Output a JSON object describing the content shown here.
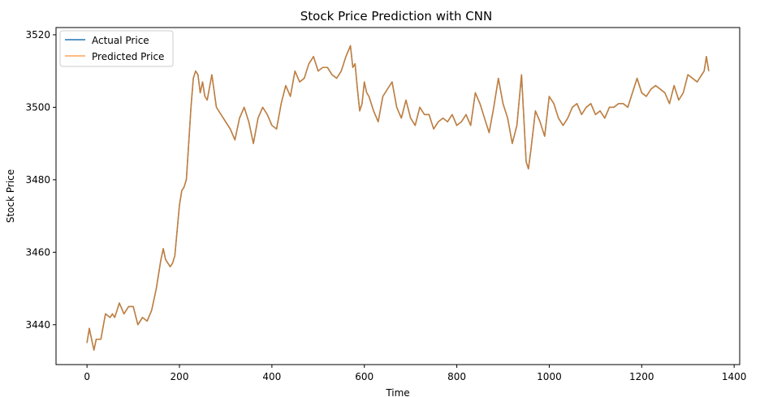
{
  "chart_data": {
    "type": "line",
    "title": "Stock Price Prediction with CNN",
    "xlabel": "Time",
    "ylabel": "Stock Price",
    "xlim": [
      -67,
      1412
    ],
    "ylim": [
      3429,
      3522
    ],
    "xticks": [
      0,
      200,
      400,
      600,
      800,
      1000,
      1200,
      1400
    ],
    "yticks": [
      3440,
      3460,
      3480,
      3500,
      3520
    ],
    "grid": false,
    "legend": "top-left",
    "series": [
      {
        "name": "Actual Price",
        "color": "#1f77b4",
        "x": [
          0,
          5,
          10,
          15,
          20,
          30,
          40,
          50,
          55,
          60,
          70,
          80,
          90,
          100,
          110,
          120,
          130,
          140,
          150,
          160,
          165,
          170,
          180,
          185,
          190,
          200,
          205,
          210,
          215,
          220,
          225,
          230,
          235,
          240,
          245,
          250,
          255,
          260,
          270,
          280,
          290,
          300,
          310,
          320,
          330,
          340,
          350,
          360,
          370,
          380,
          390,
          400,
          410,
          420,
          430,
          440,
          450,
          460,
          470,
          480,
          490,
          500,
          510,
          520,
          530,
          540,
          550,
          560,
          570,
          575,
          580,
          585,
          590,
          595,
          600,
          605,
          610,
          620,
          630,
          640,
          650,
          660,
          670,
          680,
          690,
          700,
          710,
          720,
          730,
          740,
          750,
          760,
          770,
          780,
          790,
          800,
          810,
          820,
          830,
          840,
          850,
          860,
          870,
          880,
          890,
          900,
          910,
          920,
          930,
          940,
          950,
          955,
          960,
          970,
          980,
          990,
          1000,
          1010,
          1020,
          1030,
          1040,
          1050,
          1060,
          1070,
          1080,
          1090,
          1100,
          1110,
          1120,
          1130,
          1140,
          1150,
          1160,
          1170,
          1180,
          1190,
          1200,
          1210,
          1220,
          1230,
          1240,
          1250,
          1260,
          1270,
          1280,
          1290,
          1300,
          1310,
          1320,
          1330,
          1335,
          1340,
          1345
        ],
        "values": [
          3435,
          3439,
          3436,
          3433,
          3436,
          3436,
          3443,
          3442,
          3443,
          3442,
          3446,
          3443,
          3445,
          3445,
          3440,
          3442,
          3441,
          3444,
          3450,
          3458,
          3461,
          3458,
          3456,
          3457,
          3459,
          3473,
          3477,
          3478,
          3480,
          3490,
          3500,
          3508,
          3510,
          3509,
          3504,
          3507,
          3503,
          3502,
          3509,
          3500,
          3498,
          3496,
          3494,
          3491,
          3497,
          3500,
          3496,
          3490,
          3497,
          3500,
          3498,
          3495,
          3494,
          3501,
          3506,
          3503,
          3510,
          3507,
          3508,
          3512,
          3514,
          3510,
          3511,
          3511,
          3509,
          3508,
          3510,
          3514,
          3517,
          3511,
          3512,
          3505,
          3499,
          3501,
          3507,
          3504,
          3503,
          3499,
          3496,
          3503,
          3505,
          3507,
          3500,
          3497,
          3502,
          3497,
          3495,
          3500,
          3498,
          3498,
          3494,
          3496,
          3497,
          3496,
          3498,
          3495,
          3496,
          3498,
          3495,
          3504,
          3501,
          3497,
          3493,
          3500,
          3508,
          3501,
          3497,
          3490,
          3495,
          3509,
          3485,
          3483,
          3488,
          3499,
          3496,
          3492,
          3503,
          3501,
          3497,
          3495,
          3497,
          3500,
          3501,
          3498,
          3500,
          3501,
          3498,
          3499,
          3497,
          3500,
          3500,
          3501,
          3501,
          3500,
          3504,
          3508,
          3504,
          3503,
          3505,
          3506,
          3505,
          3504,
          3501,
          3506,
          3502,
          3504,
          3509,
          3508,
          3507,
          3509,
          3510,
          3514,
          3510
        ]
      },
      {
        "name": "Predicted Price",
        "color": "#ff7f0e",
        "x": [
          0,
          5,
          10,
          15,
          20,
          30,
          40,
          50,
          55,
          60,
          70,
          80,
          90,
          100,
          110,
          120,
          130,
          140,
          150,
          160,
          165,
          170,
          180,
          185,
          190,
          200,
          205,
          210,
          215,
          220,
          225,
          230,
          235,
          240,
          245,
          250,
          255,
          260,
          270,
          280,
          290,
          300,
          310,
          320,
          330,
          340,
          350,
          360,
          370,
          380,
          390,
          400,
          410,
          420,
          430,
          440,
          450,
          460,
          470,
          480,
          490,
          500,
          510,
          520,
          530,
          540,
          550,
          560,
          570,
          575,
          580,
          585,
          590,
          595,
          600,
          605,
          610,
          620,
          630,
          640,
          650,
          660,
          670,
          680,
          690,
          700,
          710,
          720,
          730,
          740,
          750,
          760,
          770,
          780,
          790,
          800,
          810,
          820,
          830,
          840,
          850,
          860,
          870,
          880,
          890,
          900,
          910,
          920,
          930,
          940,
          950,
          955,
          960,
          970,
          980,
          990,
          1000,
          1010,
          1020,
          1030,
          1040,
          1050,
          1060,
          1070,
          1080,
          1090,
          1100,
          1110,
          1120,
          1130,
          1140,
          1150,
          1160,
          1170,
          1180,
          1190,
          1200,
          1210,
          1220,
          1230,
          1240,
          1250,
          1260,
          1270,
          1280,
          1290,
          1300,
          1310,
          1320,
          1330,
          1335,
          1340,
          1345
        ],
        "values": [
          3435,
          3439,
          3436,
          3433,
          3436,
          3436,
          3443,
          3442,
          3443,
          3442,
          3446,
          3443,
          3445,
          3445,
          3440,
          3442,
          3441,
          3444,
          3450,
          3458,
          3461,
          3458,
          3456,
          3457,
          3459,
          3473,
          3477,
          3478,
          3480,
          3490,
          3500,
          3508,
          3510,
          3509,
          3504,
          3507,
          3503,
          3502,
          3509,
          3500,
          3498,
          3496,
          3494,
          3491,
          3497,
          3500,
          3496,
          3490,
          3497,
          3500,
          3498,
          3495,
          3494,
          3501,
          3506,
          3503,
          3510,
          3507,
          3508,
          3512,
          3514,
          3510,
          3511,
          3511,
          3509,
          3508,
          3510,
          3514,
          3517,
          3511,
          3512,
          3505,
          3499,
          3501,
          3507,
          3504,
          3503,
          3499,
          3496,
          3503,
          3505,
          3507,
          3500,
          3497,
          3502,
          3497,
          3495,
          3500,
          3498,
          3498,
          3494,
          3496,
          3497,
          3496,
          3498,
          3495,
          3496,
          3498,
          3495,
          3504,
          3501,
          3497,
          3493,
          3500,
          3508,
          3501,
          3497,
          3490,
          3495,
          3509,
          3485,
          3483,
          3488,
          3499,
          3496,
          3492,
          3503,
          3501,
          3497,
          3495,
          3497,
          3500,
          3501,
          3498,
          3500,
          3501,
          3498,
          3499,
          3497,
          3500,
          3500,
          3501,
          3501,
          3500,
          3504,
          3508,
          3504,
          3503,
          3505,
          3506,
          3505,
          3504,
          3501,
          3506,
          3502,
          3504,
          3509,
          3508,
          3507,
          3509,
          3510,
          3514,
          3510
        ]
      }
    ]
  }
}
